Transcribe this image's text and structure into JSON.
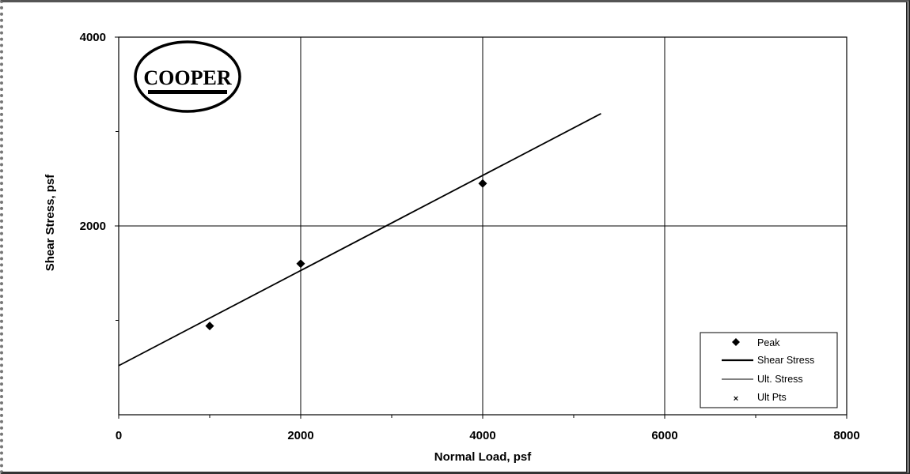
{
  "chart_data": {
    "type": "scatter",
    "title": "",
    "xlabel": "Normal Load, psf",
    "ylabel": "Shear Stress, psf",
    "xlim": [
      0,
      8000
    ],
    "ylim": [
      0,
      4000
    ],
    "x_ticks": [
      0,
      2000,
      4000,
      6000,
      8000
    ],
    "y_ticks": [
      2000,
      4000
    ],
    "grid": true,
    "legend_position": "bottom-right",
    "series": [
      {
        "name": "Peak",
        "marker": "diamond",
        "points": [
          [
            1000,
            940
          ],
          [
            2000,
            1600
          ],
          [
            4000,
            2450
          ]
        ]
      },
      {
        "name": "Shear Stress",
        "type": "line",
        "points": [
          [
            0,
            520
          ],
          [
            5300,
            3190
          ]
        ]
      },
      {
        "name": "Ult. Stress",
        "type": "line",
        "points": []
      },
      {
        "name": "Ult Pts",
        "marker": "x",
        "points": []
      }
    ]
  },
  "logo": {
    "text": "COOPER"
  },
  "colors": {
    "axis": "#000000",
    "grid": "#000000",
    "background": "#ffffff"
  }
}
